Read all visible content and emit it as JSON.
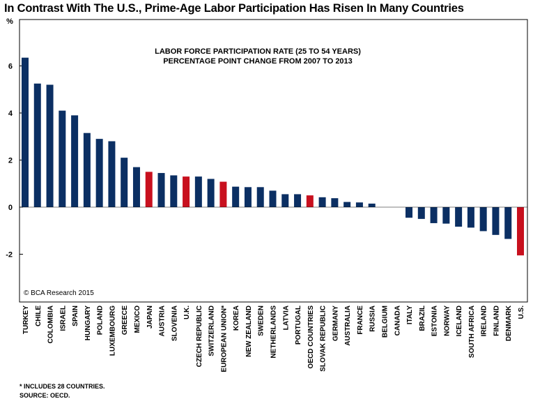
{
  "title": "In Contrast With The U.S., Prime-Age Labor Participation Has Risen In Many Countries",
  "footnotes": [
    "* INCLUDES 28 COUNTRIES.",
    "SOURCE: OECD."
  ],
  "colors": {
    "navy": "#0b2f63",
    "red": "#c8101e",
    "border": "#000000"
  },
  "chart_data": {
    "type": "bar",
    "title": "LABOR FORCE PARTICIPATION RATE (25 TO 54 YEARS)",
    "subtitle": "PERCENTAGE POINT CHANGE FROM 2007 TO 2013",
    "ylabel": "%",
    "watermark": "© BCA Research 2015",
    "ylim": [
      -4,
      8
    ],
    "yticks": [
      -2,
      0,
      2,
      4,
      6
    ],
    "grid": false,
    "categories": [
      "TURKEY",
      "CHILE",
      "COLOMBIA",
      "ISRAEL",
      "SPAIN",
      "HUNGARY",
      "POLAND",
      "LUXEMBOURG",
      "GREECE",
      "MEXICO",
      "JAPAN",
      "AUSTRIA",
      "SLOVENIA",
      "U.K.",
      "CZECH REPUBLIC",
      "SWITZERLAND",
      "EUROPEAN UNION*",
      "KOREA",
      "NEW ZEALAND",
      "SWEDEN",
      "NETHERLANDS",
      "LATVIA",
      "PORTUGAL",
      "OECD COUNTRIES",
      "SLOVAK REPUBLIC",
      "GERMANY",
      "AUSTRALIA",
      "FRANCE",
      "RUSSIA",
      "BELGIUM",
      "CANADA",
      "ITALY",
      "BRAZIL",
      "ESTONIA",
      "NORWAY",
      "ICELAND",
      "SOUTH AFRICA",
      "IRELAND",
      "FINLAND",
      "DENMARK",
      "U.S."
    ],
    "values": [
      6.35,
      5.25,
      5.2,
      4.1,
      3.9,
      3.15,
      2.9,
      2.8,
      2.1,
      1.7,
      1.5,
      1.45,
      1.35,
      1.3,
      1.3,
      1.2,
      1.08,
      0.87,
      0.85,
      0.85,
      0.7,
      0.55,
      0.55,
      0.5,
      0.42,
      0.38,
      0.22,
      0.2,
      0.15,
      0.0,
      0.0,
      -0.45,
      -0.5,
      -0.68,
      -0.7,
      -0.83,
      -0.87,
      -1.02,
      -1.18,
      -1.35,
      -2.05
    ],
    "highlighted": [
      "JAPAN",
      "U.K.",
      "EUROPEAN UNION*",
      "OECD COUNTRIES",
      "U.S."
    ]
  }
}
